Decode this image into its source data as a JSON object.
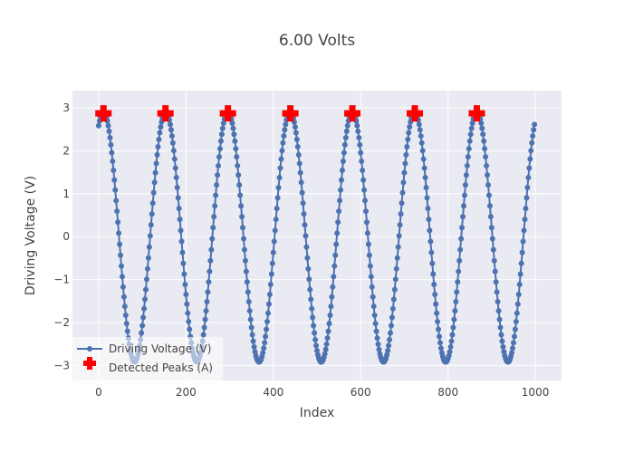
{
  "chart_data": {
    "type": "scatter",
    "title": "6.00 Volts",
    "xlabel": "Index",
    "ylabel": "Driving Voltage (V)",
    "xlim": [
      -60,
      1060
    ],
    "ylim": [
      -3.35,
      3.4
    ],
    "x_ticks": [
      0,
      200,
      400,
      600,
      800,
      1000
    ],
    "x_tick_labels": [
      "0",
      "200",
      "400",
      "600",
      "800",
      "1000"
    ],
    "y_ticks": [
      -3,
      -2,
      -1,
      0,
      1,
      2,
      3
    ],
    "y_tick_labels": [
      "−3",
      "−2",
      "−1",
      "0",
      "1",
      "2",
      "3"
    ],
    "grid": true,
    "legend_position": "bottom-left",
    "series": [
      {
        "name": "Driving Voltage (V)",
        "kind": "line+markers",
        "color": "#4c72b0",
        "model": {
          "x_start": 0,
          "x_end": 998,
          "x_step": 2,
          "amplitude": 2.92,
          "period": 142.5,
          "peak_at": 11
        }
      },
      {
        "name": "Detected Peaks (A)",
        "kind": "markers",
        "color": "#ff0000",
        "marker": "cross",
        "x": [
          11,
          153,
          296,
          439,
          581,
          724,
          866
        ],
        "y": [
          2.87,
          2.87,
          2.87,
          2.87,
          2.87,
          2.87,
          2.87
        ]
      }
    ]
  }
}
